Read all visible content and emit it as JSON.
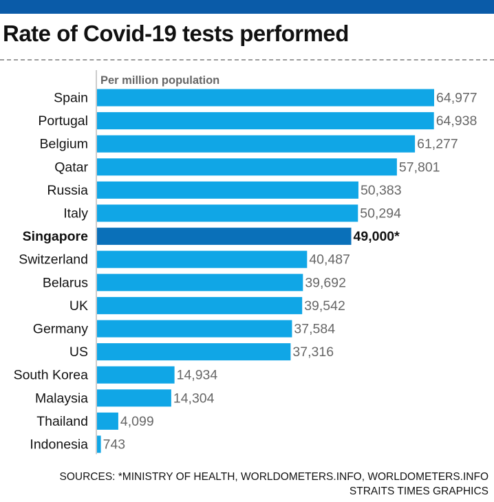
{
  "title": "Rate of Covid-19 tests performed",
  "colors": {
    "top_bar": "#0a5ba8",
    "bar": "#10a6e6",
    "bar_highlight": "#0a70b9",
    "value_text": "#666666",
    "highlight_text": "#111111"
  },
  "chart_data": {
    "type": "bar",
    "orientation": "horizontal",
    "unit_label": "Per million population",
    "categories": [
      "Spain",
      "Portugal",
      "Belgium",
      "Qatar",
      "Russia",
      "Italy",
      "Singapore",
      "Switzerland",
      "Belarus",
      "UK",
      "Germany",
      "US",
      "South Korea",
      "Malaysia",
      "Thailand",
      "Indonesia"
    ],
    "values": [
      64977,
      64938,
      61277,
      57801,
      50383,
      50294,
      49000,
      40487,
      39692,
      39542,
      37584,
      37316,
      14934,
      14304,
      4099,
      743
    ],
    "value_labels": [
      "64,977",
      "64,938",
      "61,277",
      "57,801",
      "50,383",
      "50,294",
      "49,000*",
      "40,487",
      "39,692",
      "39,542",
      "37,584",
      "37,316",
      "14,934",
      "14,304",
      "4,099",
      "743"
    ],
    "highlight": "Singapore",
    "xlim": [
      0,
      64977
    ],
    "grid": false,
    "legend": "none"
  },
  "footer": {
    "sources": "SOURCES: *MINISTRY OF HEALTH, WORLDOMETERS.INFO, WORLDOMETERS.INFO",
    "credit": "STRAITS TIMES GRAPHICS"
  }
}
